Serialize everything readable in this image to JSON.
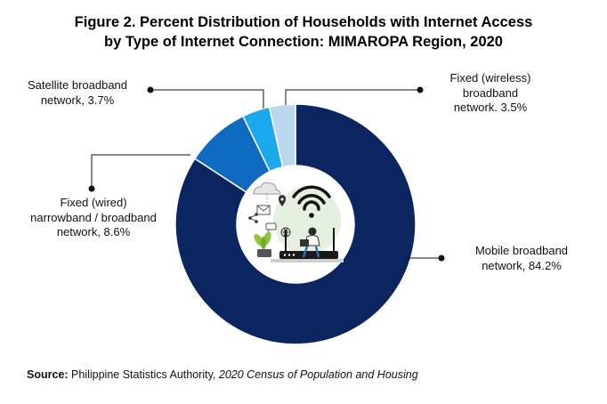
{
  "title_line1": "Figure 2. Percent Distribution of Households with Internet Access",
  "title_line2": "by Type of Internet Connection: MIMAROPA Region, 2020",
  "source": {
    "label": "Source:",
    "agency": "Philippine Statistics Authority,",
    "publication": "2020 Census of Population and Housing"
  },
  "labels": {
    "satellite": [
      "Satellite broadband",
      "network, 3.7%"
    ],
    "wireless": [
      "Fixed (wireless)",
      "broadband",
      "network. 3.5%"
    ],
    "wired": [
      "Fixed (wired)",
      "narrowband / broadband",
      "network, 8.6%"
    ],
    "mobile": [
      "Mobile broadband",
      "network, 84.2%"
    ]
  },
  "chart_data": {
    "type": "pie",
    "style": "donut",
    "title": "Figure 2. Percent Distribution of Households with Internet Access by Type of Internet Connection: MIMAROPA Region, 2020",
    "categories": [
      "Mobile broadband network",
      "Fixed (wired) narrowband / broadband network",
      "Satellite broadband network",
      "Fixed (wireless) broadband network"
    ],
    "values": [
      84.2,
      8.6,
      3.7,
      3.5
    ],
    "colors": [
      "#0b2560",
      "#0e6bc0",
      "#19a9ec",
      "#bcd6ee"
    ],
    "legend": "none"
  },
  "center_illustration_icons": [
    "cloud-icon",
    "mail-icon",
    "location-pin-icon",
    "share-icon",
    "chat-icon",
    "globe-icon",
    "wifi-icon",
    "router-icon",
    "laptop-user-icon",
    "plant-icon"
  ]
}
